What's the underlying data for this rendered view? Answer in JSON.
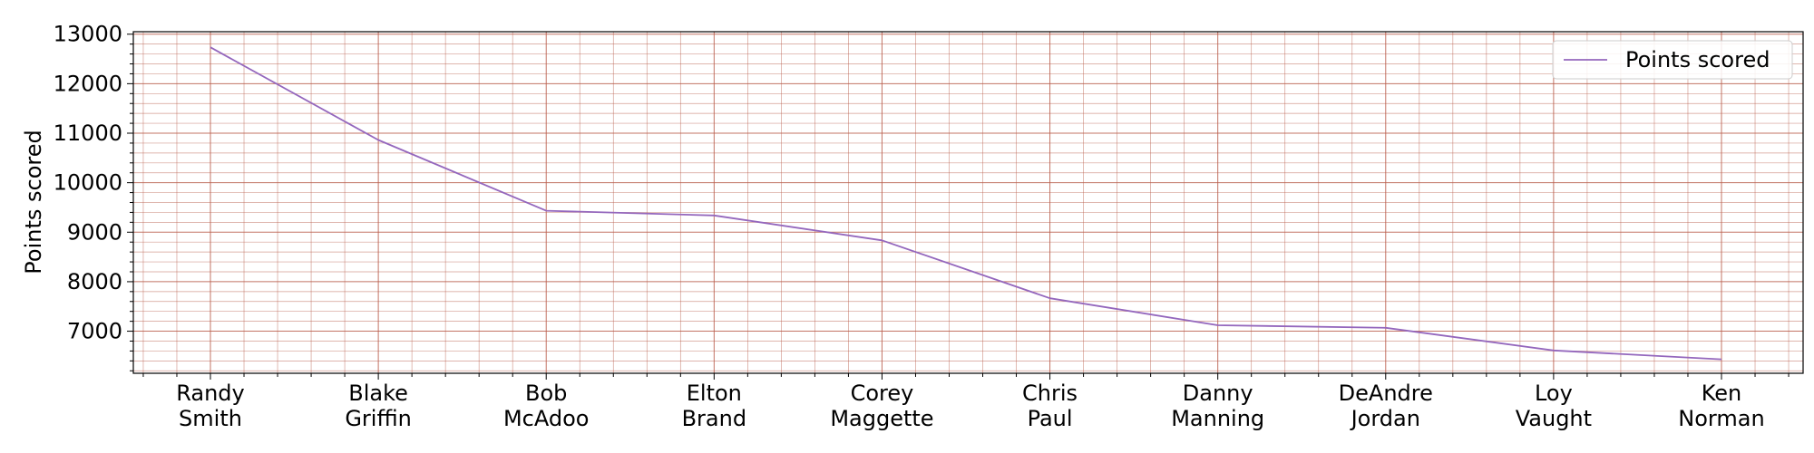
{
  "chart_data": {
    "type": "line",
    "categories": [
      "Randy\nSmith",
      "Blake\nGriffin",
      "Bob\nMcAdoo",
      "Elton\nBrand",
      "Corey\nMaggette",
      "Chris\nPaul",
      "Danny\nManning",
      "DeAndre\nJordan",
      "Loy\nVaught",
      "Ken\nNorman"
    ],
    "series": [
      {
        "name": "Points scored",
        "values": [
          12735,
          10863,
          9434,
          9338,
          8835,
          7666,
          7120,
          7069,
          6611,
          6432
        ],
        "color": "#9467bd"
      }
    ],
    "xlabel": "",
    "ylabel": "Points scored",
    "ylim": [
      6150,
      13050
    ],
    "yticks": [
      7000,
      8000,
      9000,
      10000,
      11000,
      12000,
      13000
    ],
    "grid": true,
    "grid_color": "#b85c4a",
    "legend_position": "top-right"
  }
}
